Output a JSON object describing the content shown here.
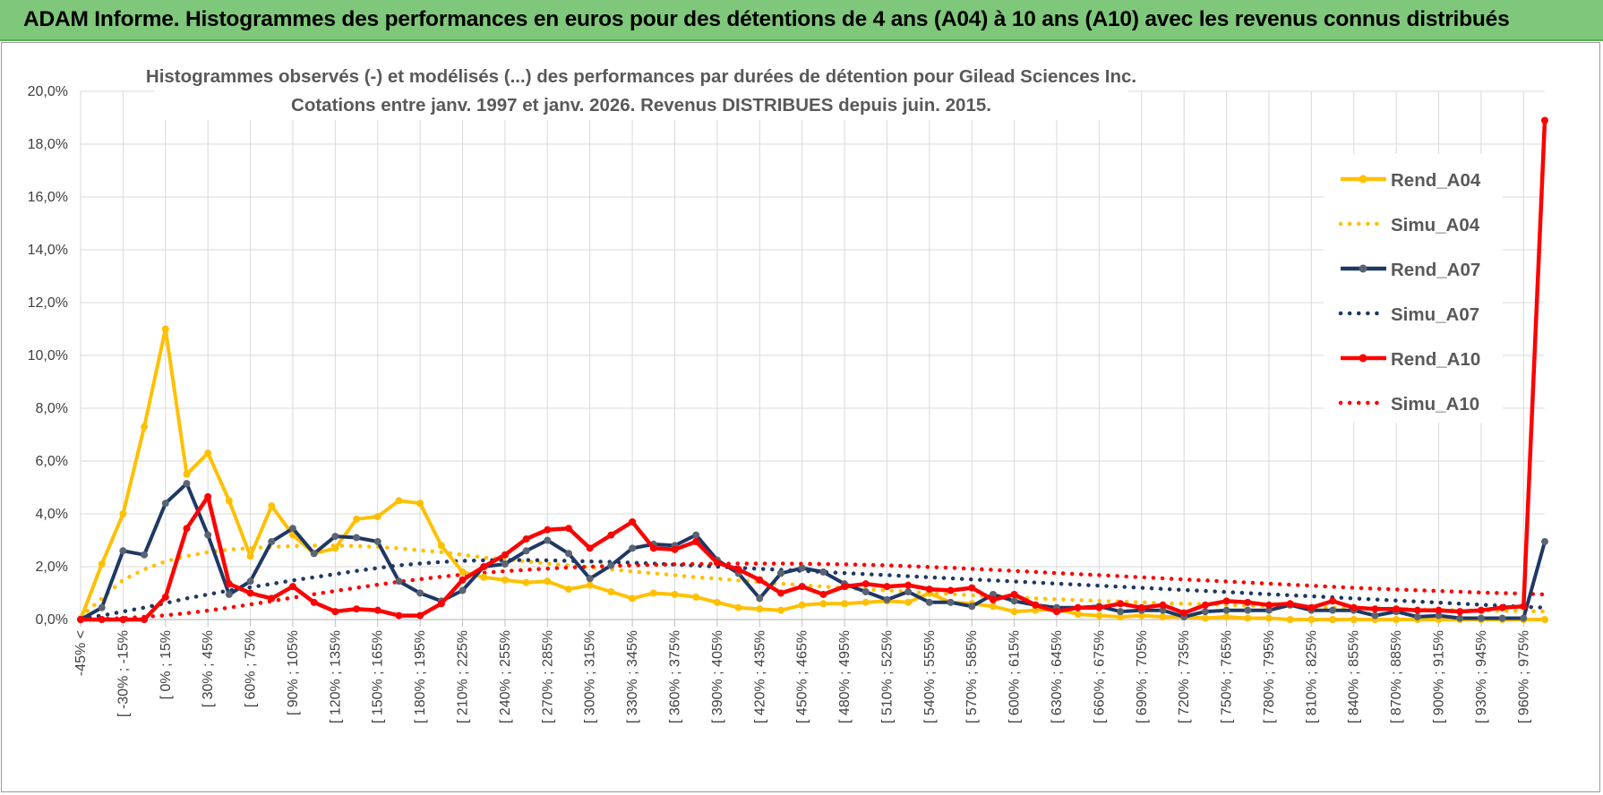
{
  "banner": {
    "title": "ADAM Informe. Histogrammes des performances en euros pour des détentions de 4 ans (A04) à 10 ans (A10) avec les revenus connus distribués"
  },
  "chart_data": {
    "type": "line",
    "title_lines": [
      "Histogrammes observés (-) et modélisés (...) des performances par durées de détention pour Gilead Sciences Inc.",
      "Cotations entre janv. 1997 et janv. 2026. Revenus DISTRIBUES depuis juin. 2015."
    ],
    "xlabel": "",
    "ylabel": "",
    "ylim": [
      0,
      20
    ],
    "y_ticks": [
      "0,0%",
      "2,0%",
      "4,0%",
      "6,0%",
      "8,0%",
      "10,0%",
      "12,0%",
      "14,0%",
      "16,0%",
      "18,0%",
      "20,0%"
    ],
    "grid": true,
    "legend_position": "right",
    "x_labels": [
      "-45% <",
      "[ -30% ; -15%",
      "[ 0% ; 15%",
      "[ 30% ; 45%",
      "[ 60% ; 75%",
      "[ 90% ; 105%",
      "[ 120% ; 135%",
      "[ 150% ; 165%",
      "[ 180% ; 195%",
      "[ 210% ; 225%",
      "[ 240% ; 255%",
      "[ 270% ; 285%",
      "[ 300% ; 315%",
      "[ 330% ; 345%",
      "[ 360% ; 375%",
      "[ 390% ; 405%",
      "[ 420% ; 435%",
      "[ 450% ; 465%",
      "[ 480% ; 495%",
      "[ 510% ; 525%",
      "[ 540% ; 555%",
      "[ 570% ; 585%",
      "[ 600% ; 615%",
      "[ 630% ; 645%",
      "[ 660% ; 675%",
      "[ 690% ; 705%",
      "[ 720% ; 735%",
      "[ 750% ; 765%",
      "[ 780% ; 795%",
      "[ 810% ; 825%",
      "[ 840% ; 855%",
      "[ 870% ; 885%",
      "[ 900% ; 915%",
      "[ 930% ; 945%",
      "[ 960% ; 975%"
    ],
    "x_label_step": 2,
    "n_points": 70,
    "series": [
      {
        "name": "Rend_A04",
        "color": "#ffc000",
        "style": "solid",
        "values": [
          0.0,
          2.1,
          4.0,
          7.3,
          11.0,
          5.5,
          6.3,
          4.5,
          2.4,
          4.3,
          3.2,
          2.5,
          2.7,
          3.8,
          3.9,
          4.5,
          4.4,
          2.8,
          1.8,
          1.6,
          1.5,
          1.4,
          1.45,
          1.15,
          1.3,
          1.05,
          0.8,
          1.0,
          0.95,
          0.85,
          0.65,
          0.45,
          0.4,
          0.35,
          0.55,
          0.6,
          0.6,
          0.65,
          0.7,
          0.65,
          1.0,
          0.65,
          0.6,
          0.5,
          0.3,
          0.35,
          0.4,
          0.2,
          0.15,
          0.1,
          0.15,
          0.1,
          0.1,
          0.05,
          0.1,
          0.05,
          0.05,
          0.0,
          0.0,
          0.0,
          0.0,
          0.0,
          0.0,
          0.0,
          0.0,
          0.0,
          0.0,
          0.0,
          0.0,
          0.0
        ]
      },
      {
        "name": "Simu_A04",
        "color": "#ffc000",
        "style": "dotted",
        "values": [
          0.1,
          0.8,
          1.5,
          1.9,
          2.2,
          2.4,
          2.55,
          2.65,
          2.7,
          2.75,
          2.78,
          2.8,
          2.8,
          2.78,
          2.75,
          2.7,
          2.62,
          2.55,
          2.45,
          2.35,
          2.28,
          2.2,
          2.12,
          2.05,
          1.98,
          1.9,
          1.82,
          1.75,
          1.68,
          1.6,
          1.55,
          1.48,
          1.42,
          1.36,
          1.3,
          1.25,
          1.2,
          1.14,
          1.1,
          1.05,
          1.0,
          0.96,
          0.92,
          0.88,
          0.84,
          0.8,
          0.77,
          0.74,
          0.71,
          0.68,
          0.65,
          0.62,
          0.6,
          0.58,
          0.55,
          0.53,
          0.51,
          0.49,
          0.47,
          0.45,
          0.43,
          0.42,
          0.4,
          0.38,
          0.37,
          0.35,
          0.34,
          0.33,
          0.32,
          0.31
        ]
      },
      {
        "name": "Rend_A07",
        "color": "#1f3864",
        "style": "solid",
        "values": [
          0.0,
          0.45,
          2.6,
          2.45,
          4.4,
          5.15,
          3.2,
          0.95,
          1.45,
          2.95,
          3.45,
          2.5,
          3.15,
          3.1,
          2.95,
          1.45,
          1.0,
          0.7,
          1.1,
          2.0,
          2.1,
          2.6,
          3.0,
          2.5,
          1.55,
          2.05,
          2.7,
          2.85,
          2.8,
          3.2,
          2.25,
          1.75,
          0.8,
          1.75,
          1.95,
          1.8,
          1.35,
          1.05,
          0.75,
          1.05,
          0.65,
          0.65,
          0.5,
          0.95,
          0.7,
          0.55,
          0.45,
          0.45,
          0.5,
          0.3,
          0.35,
          0.35,
          0.1,
          0.3,
          0.35,
          0.35,
          0.35,
          0.55,
          0.35,
          0.35,
          0.35,
          0.15,
          0.3,
          0.1,
          0.15,
          0.05,
          0.05,
          0.05,
          0.05,
          2.95
        ]
      },
      {
        "name": "Simu_A07",
        "color": "#1f3864",
        "style": "dotted",
        "values": [
          0.05,
          0.15,
          0.3,
          0.45,
          0.62,
          0.8,
          0.95,
          1.1,
          1.22,
          1.35,
          1.48,
          1.6,
          1.72,
          1.84,
          1.95,
          2.05,
          2.12,
          2.18,
          2.22,
          2.24,
          2.25,
          2.25,
          2.24,
          2.22,
          2.2,
          2.18,
          2.15,
          2.12,
          2.08,
          2.04,
          2.0,
          1.96,
          1.92,
          1.88,
          1.84,
          1.8,
          1.76,
          1.72,
          1.68,
          1.64,
          1.6,
          1.56,
          1.52,
          1.48,
          1.44,
          1.4,
          1.36,
          1.32,
          1.28,
          1.24,
          1.2,
          1.16,
          1.12,
          1.08,
          1.04,
          1.0,
          0.96,
          0.92,
          0.88,
          0.84,
          0.8,
          0.76,
          0.72,
          0.68,
          0.64,
          0.6,
          0.56,
          0.52,
          0.48,
          0.45
        ]
      },
      {
        "name": "Rend_A10",
        "color": "#ff0000",
        "style": "solid",
        "values": [
          0.0,
          0.0,
          0.0,
          0.0,
          0.85,
          3.45,
          4.65,
          1.35,
          1.0,
          0.8,
          1.25,
          0.65,
          0.3,
          0.4,
          0.35,
          0.15,
          0.15,
          0.6,
          1.5,
          2.0,
          2.45,
          3.05,
          3.4,
          3.45,
          2.7,
          3.2,
          3.7,
          2.7,
          2.65,
          2.95,
          2.15,
          1.9,
          1.5,
          1.0,
          1.25,
          0.95,
          1.25,
          1.35,
          1.25,
          1.3,
          1.15,
          1.1,
          1.2,
          0.75,
          0.95,
          0.55,
          0.3,
          0.45,
          0.45,
          0.6,
          0.45,
          0.55,
          0.25,
          0.55,
          0.7,
          0.65,
          0.55,
          0.6,
          0.45,
          0.7,
          0.45,
          0.4,
          0.4,
          0.35,
          0.35,
          0.3,
          0.35,
          0.45,
          0.5,
          18.9
        ]
      },
      {
        "name": "Simu_A10",
        "color": "#ff0000",
        "style": "dotted",
        "values": [
          0.0,
          0.02,
          0.05,
          0.1,
          0.16,
          0.24,
          0.34,
          0.45,
          0.57,
          0.7,
          0.83,
          0.96,
          1.08,
          1.2,
          1.32,
          1.43,
          1.53,
          1.62,
          1.7,
          1.77,
          1.83,
          1.88,
          1.93,
          1.97,
          2.0,
          2.03,
          2.05,
          2.07,
          2.09,
          2.1,
          2.11,
          2.12,
          2.12,
          2.12,
          2.11,
          2.1,
          2.09,
          2.07,
          2.05,
          2.02,
          1.99,
          1.96,
          1.92,
          1.88,
          1.84,
          1.8,
          1.76,
          1.72,
          1.68,
          1.64,
          1.6,
          1.56,
          1.52,
          1.48,
          1.44,
          1.4,
          1.36,
          1.32,
          1.28,
          1.24,
          1.2,
          1.17,
          1.14,
          1.11,
          1.08,
          1.05,
          1.02,
          1.0,
          0.98,
          0.95
        ]
      }
    ]
  }
}
